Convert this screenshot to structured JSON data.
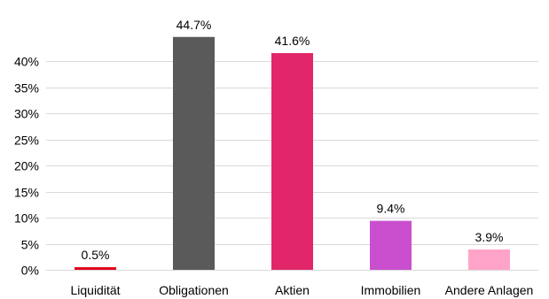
{
  "chart_data": {
    "type": "bar",
    "categories": [
      "Liquidität",
      "Obligationen",
      "Aktien",
      "Immobilien",
      "Andere Anlagen"
    ],
    "values": [
      0.5,
      44.7,
      41.6,
      9.4,
      3.9
    ],
    "value_labels": [
      "0.5%",
      "44.7%",
      "41.6%",
      "9.4%",
      "3.9%"
    ],
    "colors": [
      "#e2001a",
      "#5a5a5a",
      "#e2266a",
      "#c94fce",
      "#ffa3c8"
    ],
    "y_ticks": [
      "0%",
      "5%",
      "10%",
      "15%",
      "20%",
      "25%",
      "30%",
      "35%",
      "40%"
    ],
    "ylim": [
      0,
      45
    ],
    "grid": true,
    "title": "",
    "xlabel": "",
    "ylabel": ""
  }
}
